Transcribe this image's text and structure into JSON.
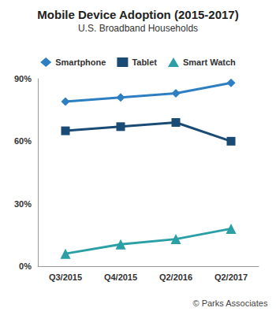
{
  "chart_data": {
    "type": "line",
    "title": "Mobile Device Adoption (2015-2017)",
    "subtitle": "U.S. Broadband Households",
    "annotation": "© Parks Associates",
    "categories": [
      "Q3/2015",
      "Q4/2015",
      "Q2/2016",
      "Q2/2017"
    ],
    "series": [
      {
        "name": "Smartphone",
        "color": "#2e7fc2",
        "marker": "diamond",
        "line_style": "solid",
        "values": [
          79,
          81,
          83,
          88
        ]
      },
      {
        "name": "Tablet",
        "color": "#1a4b74",
        "marker": "square",
        "line_style": "solid",
        "values": [
          65,
          67,
          69,
          60
        ]
      },
      {
        "name": "Smart Watch",
        "color": "#2a9fa6",
        "marker": "triangle",
        "line_style": "solid",
        "values": [
          6,
          10.5,
          13,
          18
        ]
      }
    ],
    "ylim": [
      0,
      90
    ],
    "yticks": [
      {
        "value": 0,
        "label": "0%"
      },
      {
        "value": 30,
        "label": "30%"
      },
      {
        "value": 60,
        "label": "60%"
      },
      {
        "value": 90,
        "label": "90%"
      }
    ],
    "grid": false,
    "legend": "top"
  }
}
